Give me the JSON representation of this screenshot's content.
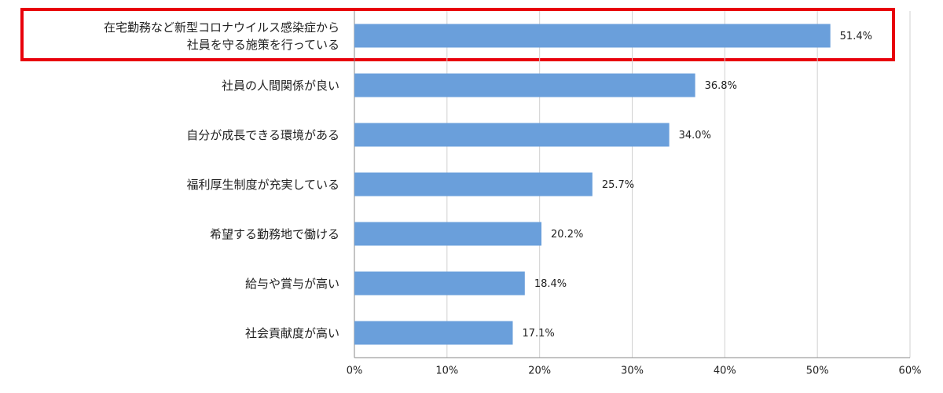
{
  "chart_data": {
    "type": "barh",
    "categories": [
      "在宅勤務など新型コロナウイルス感染症から\n社員を守る施策を行っている",
      "社員の人間関係が良い",
      "自分が成長できる環境がある",
      "福利厚生制度が充実している",
      "希望する勤務地で働ける",
      "給与や賞与が高い",
      "社会貢献度が高い"
    ],
    "values": [
      51.4,
      36.8,
      34.0,
      25.7,
      20.2,
      18.4,
      17.1
    ],
    "value_labels": [
      "51.4%",
      "36.8%",
      "34.0%",
      "25.7%",
      "20.2%",
      "18.4%",
      "17.1%"
    ],
    "color": "#6a9fdb",
    "xlim": [
      0,
      60
    ],
    "xticks": [
      {
        "value": 0,
        "label": "0%"
      },
      {
        "value": 10,
        "label": "10%"
      },
      {
        "value": 20,
        "label": "20%"
      },
      {
        "value": 30,
        "label": "30%"
      },
      {
        "value": 40,
        "label": "40%"
      },
      {
        "value": 50,
        "label": "50%"
      },
      {
        "value": 60,
        "label": "60%"
      }
    ],
    "grid": true
  }
}
